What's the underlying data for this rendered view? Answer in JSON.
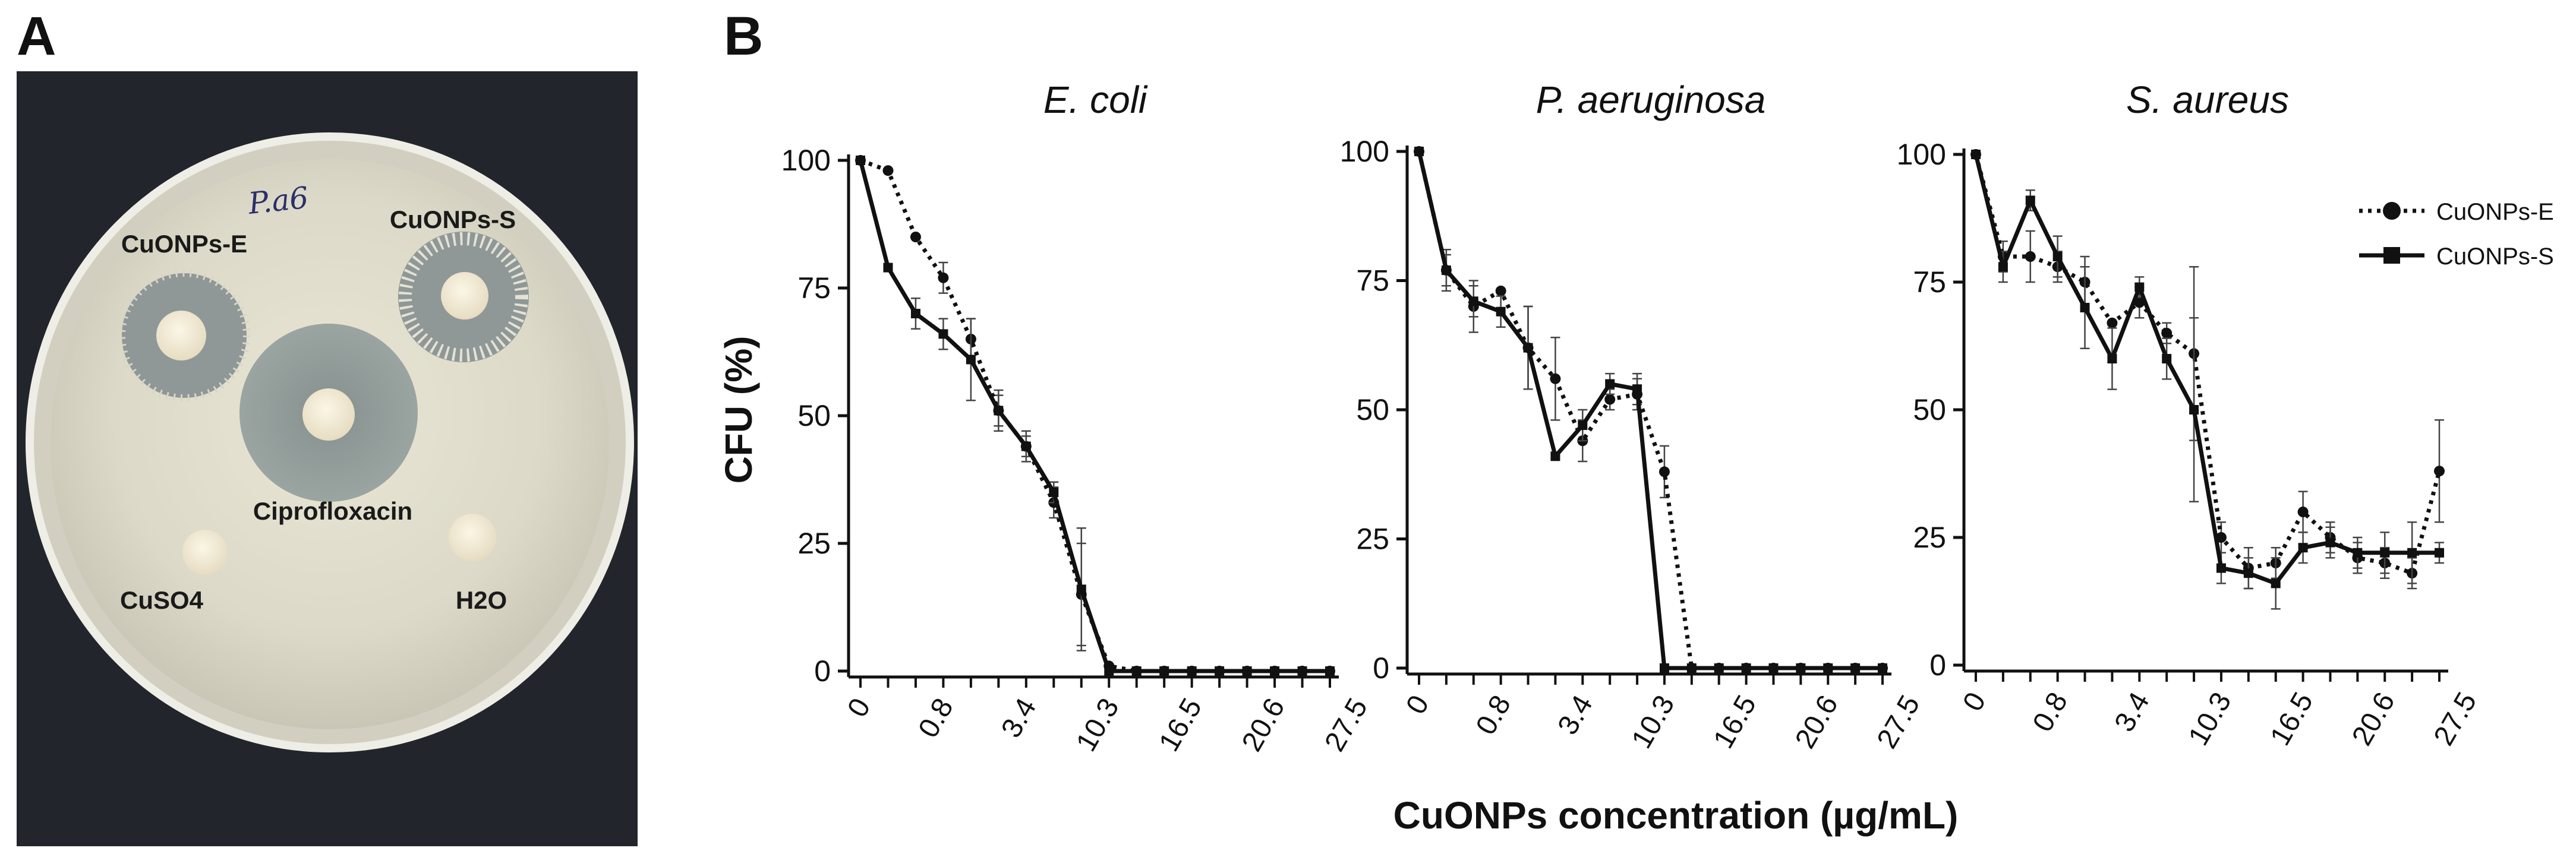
{
  "panel_a": {
    "label": "A",
    "plate": {
      "handwritten_mark": "P.a6",
      "disc_labels": {
        "cuonps_e": "CuONPs-E",
        "cuonps_s": "CuONPs-S",
        "ciprofloxacin": "Ciprofloxacin",
        "cuso4": "CuSO4",
        "h2o": "H2O"
      }
    }
  },
  "panel_b": {
    "label": "B",
    "ylabel": "CFU (%)",
    "xlabel": "CuONPs concentration (µg/mL)",
    "legend": {
      "position": "top-right",
      "entries": [
        "CuONPs-E",
        "CuONPs-S"
      ]
    }
  },
  "chart_data": [
    {
      "type": "line",
      "title": "E. coli",
      "x_tick_labels": [
        "0",
        "0.8",
        "3.4",
        "10.3",
        "16.5",
        "20.6",
        "27.5"
      ],
      "y_ticks": [
        0,
        25,
        50,
        75,
        100
      ],
      "ylim": [
        0,
        100
      ],
      "n_points": 18,
      "series": [
        {
          "name": "CuONPs-E",
          "style": "dotted",
          "marker": "circle",
          "values": [
            100,
            98,
            85,
            77,
            65,
            51,
            44,
            33,
            15,
            1,
            0,
            0,
            0,
            0,
            0,
            0,
            0,
            0
          ],
          "errors": [
            0,
            0,
            0,
            3,
            4,
            3,
            3,
            3,
            10,
            0,
            0,
            0,
            0,
            0,
            0,
            0,
            0,
            0
          ]
        },
        {
          "name": "CuONPs-S",
          "style": "solid",
          "marker": "square",
          "values": [
            100,
            79,
            70,
            66,
            61,
            51,
            44,
            35,
            16,
            0,
            0,
            0,
            0,
            0,
            0,
            0,
            0,
            0
          ],
          "errors": [
            0,
            0,
            3,
            3,
            8,
            4,
            2,
            2,
            12,
            0,
            0,
            0,
            0,
            0,
            0,
            0,
            0,
            0
          ]
        }
      ]
    },
    {
      "type": "line",
      "title": "P. aeruginosa",
      "x_tick_labels": [
        "0",
        "0.8",
        "3.4",
        "10.3",
        "16.5",
        "20.6",
        "27.5"
      ],
      "y_ticks": [
        0,
        25,
        50,
        75,
        100
      ],
      "ylim": [
        0,
        100
      ],
      "n_points": 18,
      "series": [
        {
          "name": "CuONPs-E",
          "style": "dotted",
          "marker": "circle",
          "values": [
            100,
            77,
            70,
            73,
            62,
            56,
            44,
            52,
            53,
            38,
            0,
            0,
            0,
            0,
            0,
            0,
            0,
            0
          ],
          "errors": [
            0,
            4,
            5,
            0,
            8,
            8,
            4,
            2,
            3,
            5,
            0,
            0,
            0,
            0,
            0,
            0,
            0,
            0
          ]
        },
        {
          "name": "CuONPs-S",
          "style": "solid",
          "marker": "square",
          "values": [
            100,
            77,
            71,
            69,
            62,
            41,
            47,
            55,
            54,
            0,
            0,
            0,
            0,
            0,
            0,
            0,
            0,
            0
          ],
          "errors": [
            0,
            3,
            3,
            3,
            8,
            0,
            3,
            2,
            3,
            0,
            0,
            0,
            0,
            0,
            0,
            0,
            0,
            0
          ]
        }
      ]
    },
    {
      "type": "line",
      "title": "S. aureus",
      "x_tick_labels": [
        "0",
        "0.8",
        "3.4",
        "10.3",
        "16.5",
        "20.6",
        "27.5"
      ],
      "y_ticks": [
        0,
        25,
        50,
        75,
        100
      ],
      "ylim": [
        0,
        100
      ],
      "n_points": 18,
      "series": [
        {
          "name": "CuONPs-E",
          "style": "dotted",
          "marker": "circle",
          "values": [
            100,
            80,
            80,
            78,
            75,
            67,
            71,
            65,
            61,
            25,
            19,
            20,
            30,
            25,
            21,
            20,
            18,
            38
          ],
          "errors": [
            0,
            3,
            5,
            3,
            5,
            0,
            3,
            2,
            17,
            3,
            4,
            3,
            4,
            3,
            3,
            3,
            3,
            10
          ]
        },
        {
          "name": "CuONPs-S",
          "style": "solid",
          "marker": "square",
          "values": [
            100,
            78,
            91,
            80,
            70,
            60,
            74,
            60,
            50,
            19,
            18,
            16,
            23,
            24,
            22,
            22,
            22,
            22
          ],
          "errors": [
            0,
            3,
            2,
            4,
            8,
            6,
            2,
            4,
            18,
            3,
            3,
            5,
            3,
            3,
            3,
            4,
            6,
            2
          ]
        }
      ]
    }
  ]
}
